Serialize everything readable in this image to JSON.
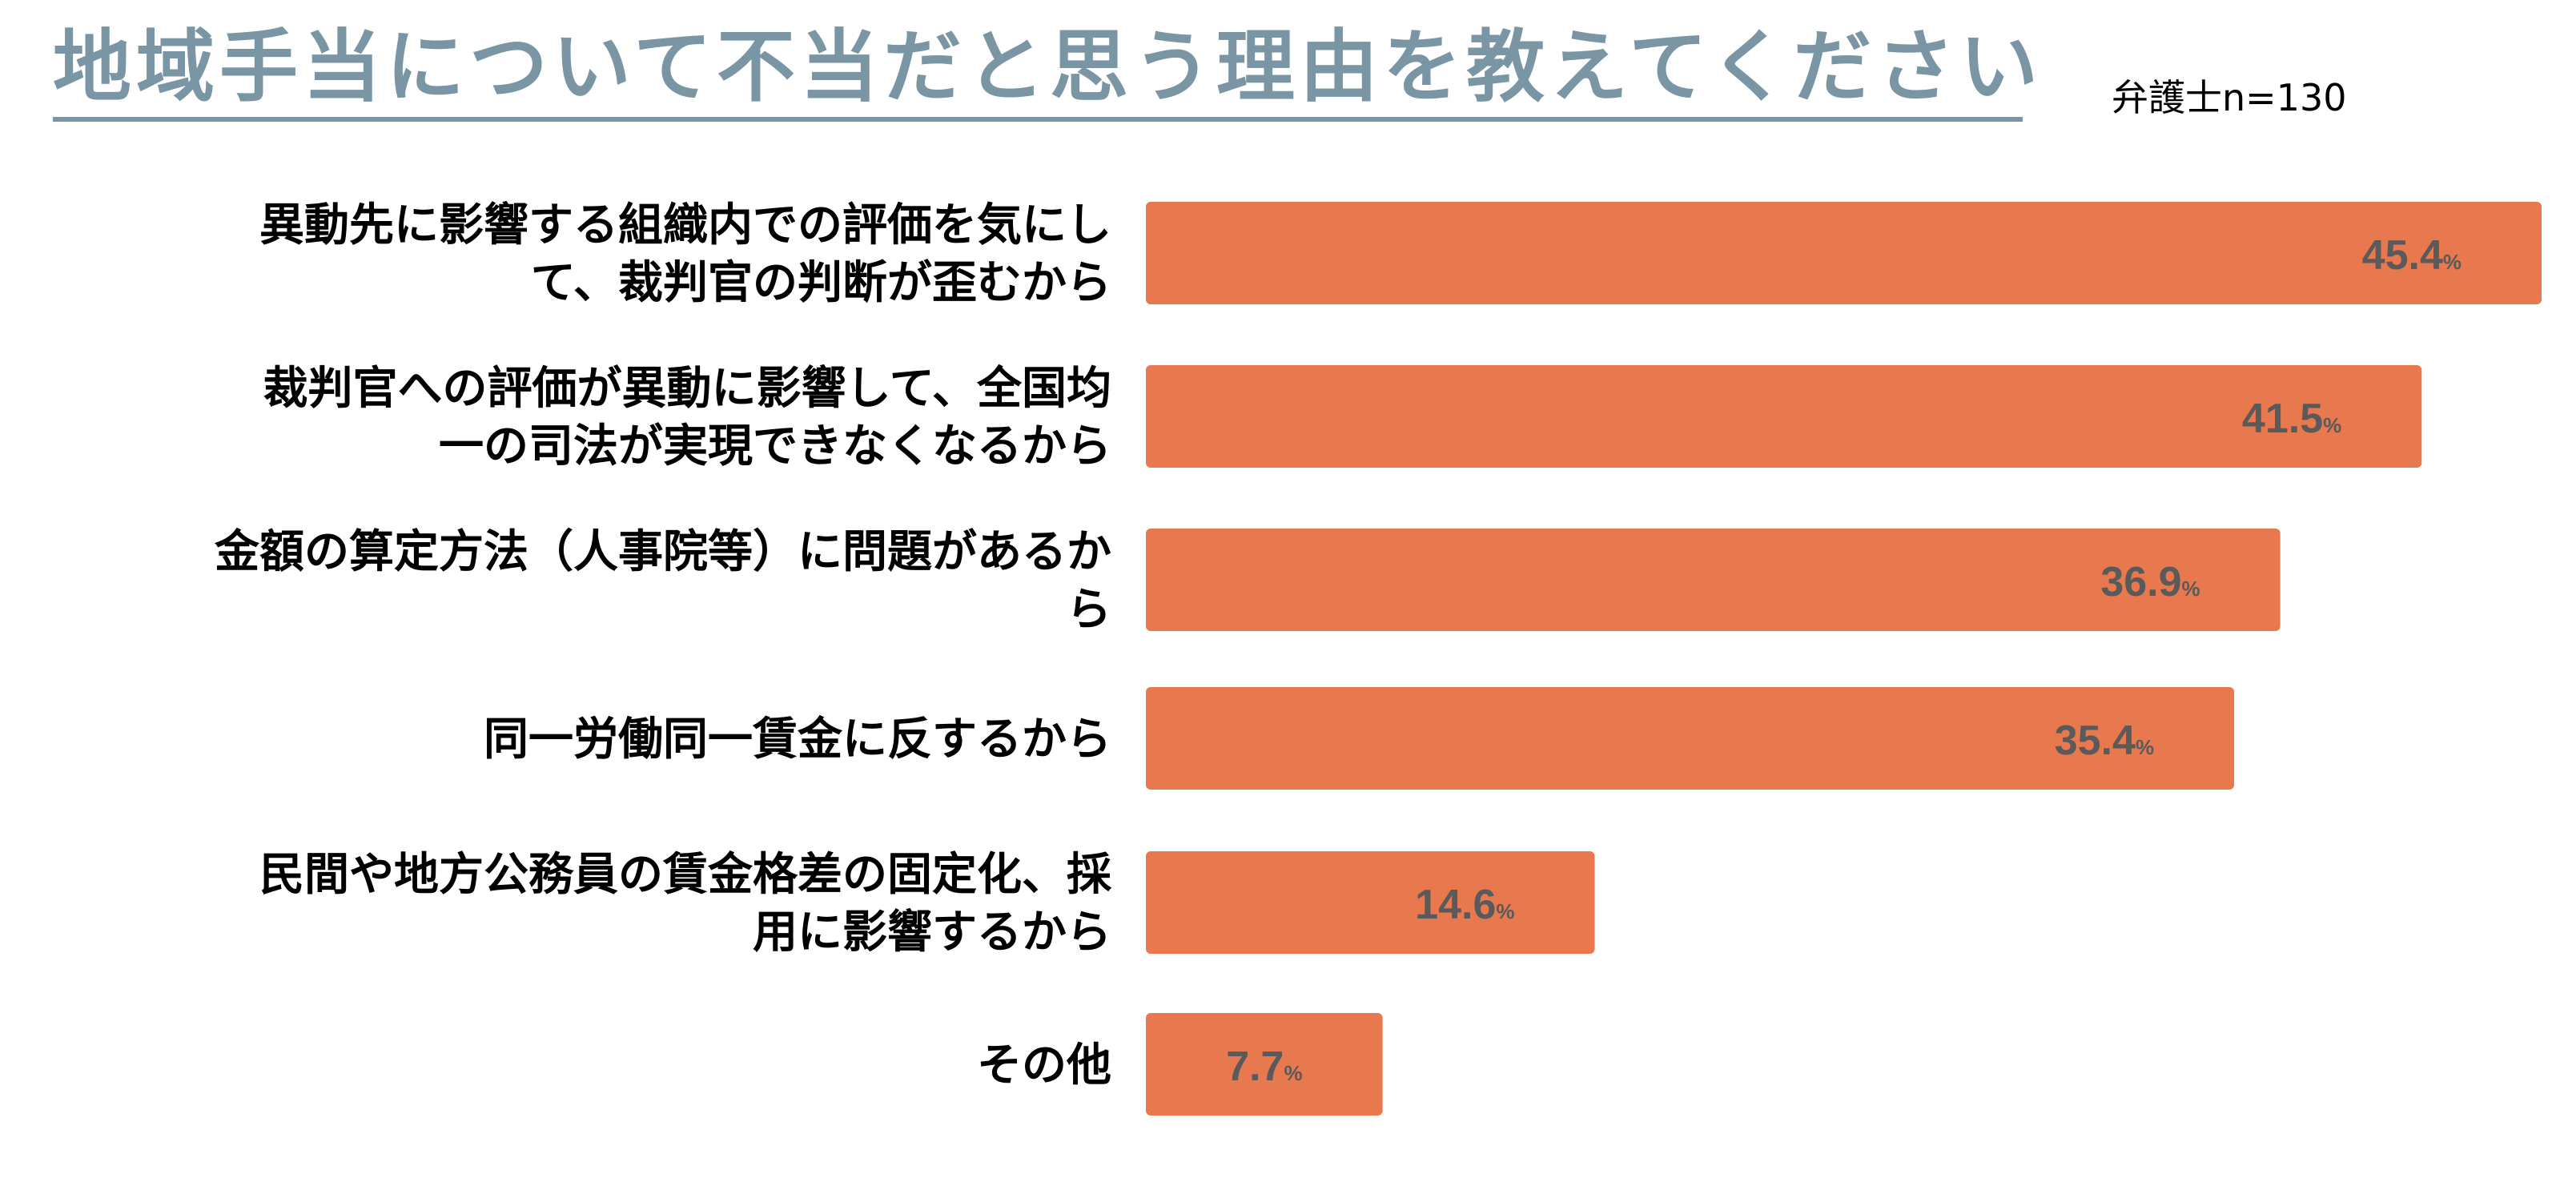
{
  "header": {
    "title": "地域手当について不当だと思う理由を教えてください",
    "sample": "弁護士n=130"
  },
  "chart_data": {
    "type": "bar",
    "orientation": "horizontal",
    "title": "地域手当について不当だと思う理由を教えてください",
    "categories": [
      [
        "異動先に影響する組織内での評価を気にし",
        "て、裁判官の判断が歪むから"
      ],
      [
        "裁判官への評価が異動に影響して、全国均",
        "一の司法が実現できなくなるから"
      ],
      [
        "金額の算定方法（人事院等）に問題があるか",
        "ら"
      ],
      [
        "同一労働同一賃金に反するから"
      ],
      [
        "民間や地方公務員の賃金格差の固定化、採",
        "用に影響するから"
      ],
      [
        "その他"
      ]
    ],
    "values": [
      45.4,
      41.5,
      36.9,
      35.4,
      14.6,
      7.7
    ],
    "value_labels": [
      "45.4",
      "41.5",
      "36.9",
      "35.4",
      "14.6",
      "7.7"
    ],
    "unit": "%",
    "xlim": [
      0,
      45.4
    ],
    "bar_color": "#e8784d",
    "value_label_color": "#5a5a5a",
    "grid": false,
    "legend": "none"
  }
}
